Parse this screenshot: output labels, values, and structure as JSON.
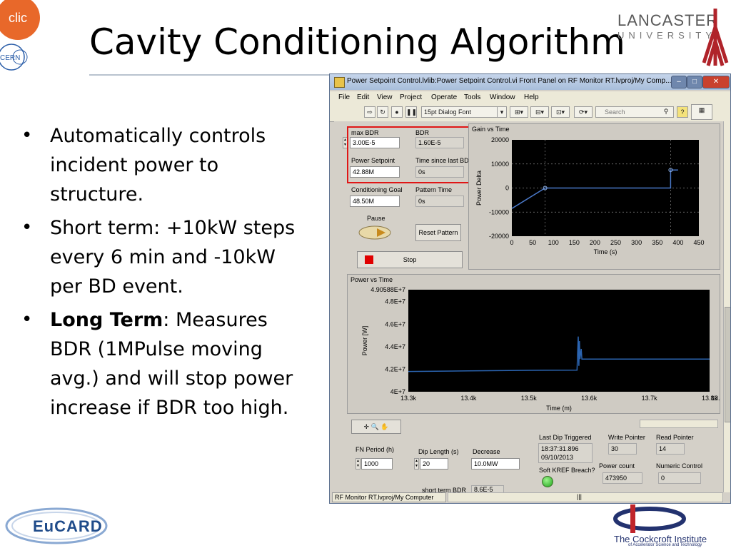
{
  "slide": {
    "title": "Cavity Conditioning Algorithm",
    "bullets": [
      {
        "text": "Automatically controls incident power to structure."
      },
      {
        "text": "Short term: +10kW steps every 6 min and -10kW per BD event."
      },
      {
        "bold": "Long Term",
        "text": ": Measures BDR (1MPulse moving avg.) and will stop power increase if BDR too high."
      }
    ],
    "logos": {
      "clic": "clic",
      "cern": "CERN",
      "lancaster_1": "LANCASTER",
      "lancaster_2": "UNIVERSITY",
      "eucard": "EuCARD",
      "cockcroft": "The Cockcroft Institute",
      "cockcroft_sub": "of Accelerator Science and Technology"
    }
  },
  "window": {
    "title": "Power Setpoint Control.lvlib:Power Setpoint Control.vi Front Panel on RF Monitor RT.lvproj/My Comp...",
    "menu": [
      "File",
      "Edit",
      "View",
      "Project",
      "Operate",
      "Tools",
      "Window",
      "Help"
    ],
    "font_select": "15pt Dialog Font",
    "search_placeholder": "Search",
    "status_bar": "RF Monitor RT.lvproj/My Computer",
    "scroll_mark": "|||",
    "help_glyph": "?"
  },
  "controls": {
    "max_bdr": {
      "label": "max BDR",
      "value": "3.00E-5"
    },
    "bdr": {
      "label": "BDR",
      "value": "1.60E-5"
    },
    "power_setpoint": {
      "label": "Power Setpoint",
      "value": "42.88M"
    },
    "time_since_last_bd": {
      "label": "Time since last BD",
      "value": "0s"
    },
    "conditioning_goal": {
      "label": "Conditioning Goal",
      "value": "48.50M"
    },
    "pattern_time": {
      "label": "Pattern Time",
      "value": "0s"
    },
    "pause": {
      "label": "Pause"
    },
    "reset_pattern": {
      "label": "Reset Pattern"
    },
    "stop": {
      "label": "Stop"
    },
    "fn_period": {
      "label": "FN Period (h)",
      "value": "1000"
    },
    "dip_length": {
      "label": "Dip Length (s)",
      "value": "20"
    },
    "decrease": {
      "label": "Decrease",
      "value": "10.0MW"
    },
    "last_dip": {
      "label": "Last Dip Triggered",
      "time": "18:37:31.896",
      "date": "09/10/2013"
    },
    "write_pointer": {
      "label": "Write Pointer",
      "value": "30"
    },
    "read_pointer": {
      "label": "Read Pointer",
      "value": "14"
    },
    "soft_kref": {
      "label": "Soft KREF Breach?"
    },
    "power_count": {
      "label": "Power count",
      "value": "473950"
    },
    "numeric_control": {
      "label": "Numeric Control",
      "value": "0"
    },
    "short_term_bdr": {
      "label": "short term BDR",
      "value": "8.6E-5"
    }
  },
  "chart_data": [
    {
      "type": "line",
      "title": "Gain vs Time",
      "xlabel": "Time (s)",
      "ylabel": "Power Delta",
      "xlim": [
        0,
        450
      ],
      "ylim": [
        -20000,
        20000
      ],
      "xticks": [
        "0",
        "50",
        "100",
        "150",
        "200",
        "250",
        "300",
        "350",
        "400",
        "450"
      ],
      "yticks": [
        "20000",
        "10000",
        "0",
        "-10000",
        "-20000"
      ],
      "grid": true,
      "series": [
        {
          "x": [
            0,
            80,
            380,
            382,
            382,
            400
          ],
          "y": [
            -8500,
            0,
            0,
            0,
            7500,
            7500
          ],
          "color": "#4a78c8"
        }
      ],
      "markers": [
        {
          "x": 80,
          "y": 0
        },
        {
          "x": 382,
          "y": 7500
        }
      ]
    },
    {
      "type": "line",
      "title": "Power vs Time",
      "xlabel": "Time (m)",
      "ylabel": "Power [W]",
      "xlim": [
        13300,
        13800
      ],
      "ylim": [
        40000000,
        49058800
      ],
      "xticks": [
        "13.3k",
        "13.4k",
        "13.5k",
        "13.6k",
        "13.7k",
        "13.8k"
      ],
      "yticks": [
        "4.90588E+7",
        "4.8E+7",
        "4.6E+7",
        "4.4E+7",
        "4.2E+7",
        "4E+7"
      ],
      "tick_end": "13.8k",
      "series": [
        {
          "x": [
            13300,
            13400,
            13500,
            13580,
            13582,
            13583,
            13584,
            13585,
            13587,
            13588,
            13800
          ],
          "y": [
            41800000,
            41850000,
            41900000,
            41920000,
            44900000,
            42300000,
            44500000,
            42900000,
            43800000,
            42900000,
            42900000
          ],
          "color": "#2b64b0"
        }
      ]
    }
  ]
}
